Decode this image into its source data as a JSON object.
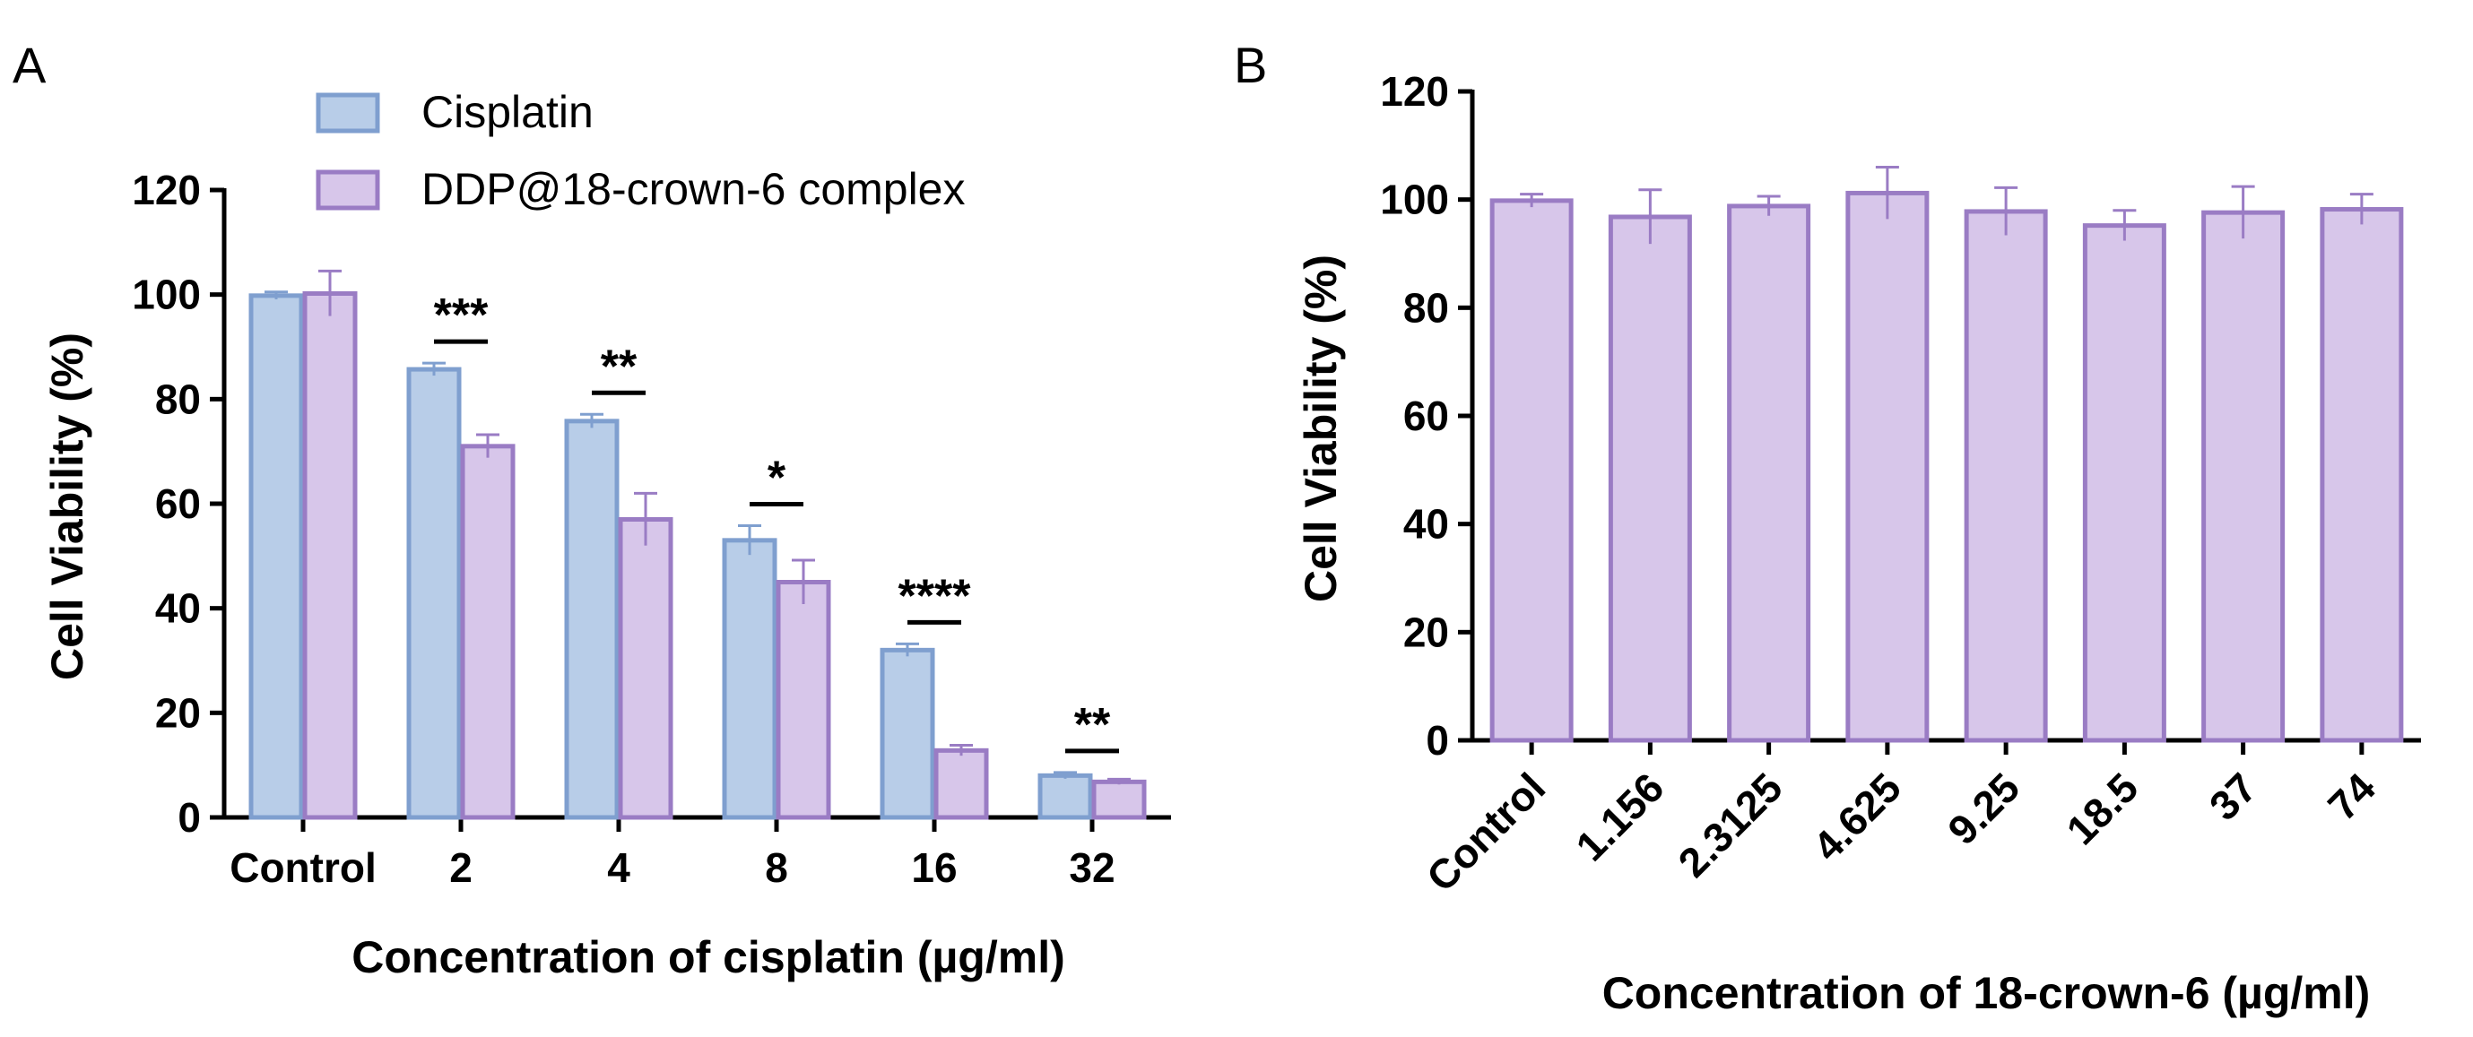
{
  "colors": {
    "cisplatin_fill": "#b8cde8",
    "cisplatin_stroke": "#7f9fcf",
    "complex_fill": "#d7c6ea",
    "complex_stroke": "#9a7cc4"
  },
  "chart_data": [
    {
      "panel": "A",
      "type": "bar",
      "xlabel": "Concentration of cisplatin (µg/ml)",
      "ylabel": "Cell Viability (%)",
      "ylim": [
        0,
        120
      ],
      "yticks": [
        0,
        20,
        40,
        60,
        80,
        100,
        120
      ],
      "categories": [
        "Control",
        "2",
        "4",
        "8",
        "16",
        "32"
      ],
      "legend_position": "top",
      "series": [
        {
          "name": "Cisplatin",
          "values": [
            99.8,
            85.7,
            75.8,
            53.0,
            32.0,
            8.0
          ],
          "errors": [
            0.7,
            1.2,
            1.3,
            2.8,
            1.2,
            0.6
          ]
        },
        {
          "name": "DDP@18-crown-6 complex",
          "values": [
            100.2,
            71.0,
            57.0,
            45.0,
            12.8,
            6.8
          ],
          "errors": [
            4.3,
            2.2,
            5.0,
            4.2,
            1.0,
            0.5
          ]
        }
      ],
      "significance": [
        {
          "category": "2",
          "label": "***"
        },
        {
          "category": "4",
          "label": "**"
        },
        {
          "category": "8",
          "label": "*"
        },
        {
          "category": "16",
          "label": "****"
        },
        {
          "category": "32",
          "label": "**"
        }
      ]
    },
    {
      "panel": "B",
      "type": "bar",
      "xlabel": "Concentration of 18-crown-6 (µg/ml)",
      "ylabel": "Cell Viability (%)",
      "ylim": [
        0,
        120
      ],
      "yticks": [
        0,
        20,
        40,
        60,
        80,
        100,
        120
      ],
      "categories": [
        "Control",
        "1.156",
        "2.3125",
        "4.625",
        "9.25",
        "18.5",
        "37",
        "74"
      ],
      "series": [
        {
          "values": [
            99.8,
            96.8,
            98.8,
            101.2,
            97.8,
            95.2,
            97.6,
            98.2
          ],
          "errors": [
            1.2,
            5.0,
            1.8,
            4.8,
            4.4,
            2.8,
            4.8,
            2.8
          ]
        }
      ]
    }
  ]
}
